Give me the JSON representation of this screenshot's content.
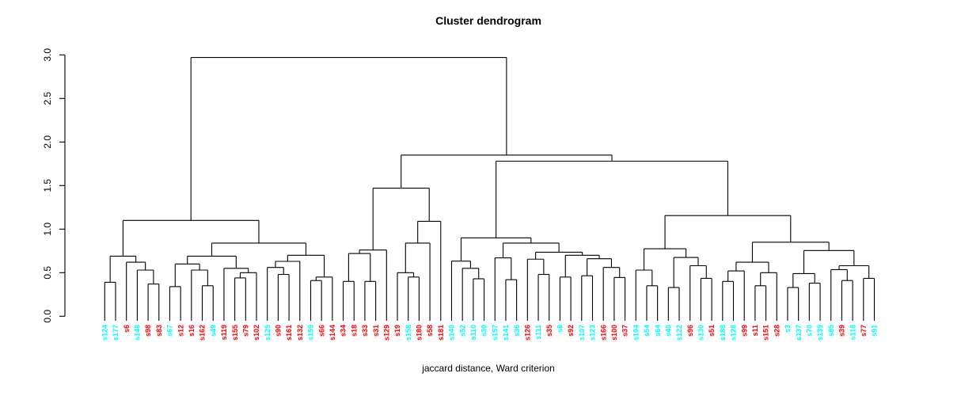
{
  "chart_data": {
    "type": "dendrogram",
    "title": "Cluster dendrogram",
    "xlabel": "jaccard distance, Ward criterion",
    "ylabel": "",
    "ylim": [
      0,
      3
    ],
    "y_ticks": [
      0.0,
      0.5,
      1.0,
      1.5,
      2.0,
      2.5,
      3.0
    ],
    "grid": false,
    "legend": "none",
    "line_color": "#000000",
    "leaf_colors": {
      "red": "#FF0000",
      "cyan": "#00FFFF"
    },
    "leaves": [
      {
        "label": "s124",
        "color": "cyan"
      },
      {
        "label": "s177",
        "color": "cyan"
      },
      {
        "label": "s6",
        "color": "red"
      },
      {
        "label": "s148",
        "color": "cyan"
      },
      {
        "label": "s98",
        "color": "red"
      },
      {
        "label": "s83",
        "color": "red"
      },
      {
        "label": "s67",
        "color": "cyan"
      },
      {
        "label": "s12",
        "color": "red"
      },
      {
        "label": "s16",
        "color": "red"
      },
      {
        "label": "s162",
        "color": "red"
      },
      {
        "label": "s49",
        "color": "cyan"
      },
      {
        "label": "s119",
        "color": "red"
      },
      {
        "label": "s155",
        "color": "red"
      },
      {
        "label": "s79",
        "color": "red"
      },
      {
        "label": "s102",
        "color": "red"
      },
      {
        "label": "s125",
        "color": "cyan"
      },
      {
        "label": "s90",
        "color": "red"
      },
      {
        "label": "s161",
        "color": "red"
      },
      {
        "label": "s132",
        "color": "red"
      },
      {
        "label": "s159",
        "color": "cyan"
      },
      {
        "label": "s66",
        "color": "red"
      },
      {
        "label": "s144",
        "color": "red"
      },
      {
        "label": "s34",
        "color": "red"
      },
      {
        "label": "s18",
        "color": "red"
      },
      {
        "label": "s33",
        "color": "red"
      },
      {
        "label": "s31",
        "color": "red"
      },
      {
        "label": "s129",
        "color": "red"
      },
      {
        "label": "s19",
        "color": "red"
      },
      {
        "label": "s158",
        "color": "cyan"
      },
      {
        "label": "s180",
        "color": "red"
      },
      {
        "label": "s58",
        "color": "red"
      },
      {
        "label": "s181",
        "color": "red"
      },
      {
        "label": "s140",
        "color": "cyan"
      },
      {
        "label": "s52",
        "color": "cyan"
      },
      {
        "label": "s110",
        "color": "cyan"
      },
      {
        "label": "s30",
        "color": "cyan"
      },
      {
        "label": "s157",
        "color": "cyan"
      },
      {
        "label": "s141",
        "color": "cyan"
      },
      {
        "label": "s36",
        "color": "cyan"
      },
      {
        "label": "s126",
        "color": "red"
      },
      {
        "label": "s111",
        "color": "cyan"
      },
      {
        "label": "s35",
        "color": "red"
      },
      {
        "label": "s9",
        "color": "cyan"
      },
      {
        "label": "s92",
        "color": "red"
      },
      {
        "label": "s107",
        "color": "cyan"
      },
      {
        "label": "s123",
        "color": "cyan"
      },
      {
        "label": "s166",
        "color": "red"
      },
      {
        "label": "s100",
        "color": "red"
      },
      {
        "label": "s37",
        "color": "red"
      },
      {
        "label": "s104",
        "color": "cyan"
      },
      {
        "label": "s54",
        "color": "cyan"
      },
      {
        "label": "s64",
        "color": "cyan"
      },
      {
        "label": "s40",
        "color": "cyan"
      },
      {
        "label": "s122",
        "color": "cyan"
      },
      {
        "label": "s96",
        "color": "red"
      },
      {
        "label": "s130",
        "color": "cyan"
      },
      {
        "label": "s51",
        "color": "red"
      },
      {
        "label": "s188",
        "color": "cyan"
      },
      {
        "label": "s128",
        "color": "cyan"
      },
      {
        "label": "s99",
        "color": "red"
      },
      {
        "label": "s11",
        "color": "red"
      },
      {
        "label": "s151",
        "color": "red"
      },
      {
        "label": "s28",
        "color": "red"
      },
      {
        "label": "s3",
        "color": "cyan"
      },
      {
        "label": "s137",
        "color": "cyan"
      },
      {
        "label": "s70",
        "color": "cyan"
      },
      {
        "label": "s139",
        "color": "cyan"
      },
      {
        "label": "s85",
        "color": "cyan"
      },
      {
        "label": "s39",
        "color": "red"
      },
      {
        "label": "s118",
        "color": "cyan"
      },
      {
        "label": "s77",
        "color": "red"
      },
      {
        "label": "s91",
        "color": "cyan"
      }
    ],
    "tree": {
      "h": 2.97,
      "c": [
        {
          "h": 1.1,
          "c": [
            {
              "h": 0.69,
              "c": [
                {
                  "h": 0.39,
                  "c": [
                    "s124",
                    "s177"
                  ]
                },
                {
                  "h": 0.62,
                  "c": [
                    "s6",
                    {
                      "h": 0.53,
                      "c": [
                        "s148",
                        {
                          "h": 0.37,
                          "c": [
                            "s98",
                            "s83"
                          ]
                        }
                      ]
                    }
                  ]
                }
              ]
            },
            {
              "h": 0.84,
              "c": [
                {
                  "h": 0.69,
                  "c": [
                    {
                      "h": 0.6,
                      "c": [
                        {
                          "h": 0.34,
                          "c": [
                            "s67",
                            "s12"
                          ]
                        },
                        {
                          "h": 0.53,
                          "c": [
                            "s16",
                            {
                              "h": 0.35,
                              "c": [
                                "s162",
                                "s49"
                              ]
                            }
                          ]
                        }
                      ]
                    },
                    {
                      "h": 0.55,
                      "c": [
                        "s119",
                        {
                          "h": 0.5,
                          "c": [
                            {
                              "h": 0.44,
                              "c": [
                                "s155",
                                "s79"
                              ]
                            },
                            "s102"
                          ]
                        }
                      ]
                    }
                  ]
                },
                {
                  "h": 0.7,
                  "c": [
                    {
                      "h": 0.63,
                      "c": [
                        {
                          "h": 0.56,
                          "c": [
                            "s125",
                            {
                              "h": 0.48,
                              "c": [
                                "s90",
                                "s161"
                              ]
                            }
                          ]
                        },
                        "s132"
                      ]
                    },
                    {
                      "h": 0.45,
                      "c": [
                        {
                          "h": 0.41,
                          "c": [
                            "s159",
                            "s66"
                          ]
                        },
                        "s144"
                      ]
                    }
                  ]
                }
              ]
            }
          ]
        },
        {
          "h": 1.85,
          "c": [
            {
              "h": 1.47,
              "c": [
                {
                  "h": 0.76,
                  "c": [
                    {
                      "h": 0.72,
                      "c": [
                        {
                          "h": 0.4,
                          "c": [
                            "s34",
                            "s18"
                          ]
                        },
                        {
                          "h": 0.4,
                          "c": [
                            "s33",
                            "s31"
                          ]
                        }
                      ]
                    },
                    "s129"
                  ]
                },
                {
                  "h": 1.09,
                  "c": [
                    {
                      "h": 0.84,
                      "c": [
                        {
                          "h": 0.5,
                          "c": [
                            "s19",
                            {
                              "h": 0.45,
                              "c": [
                                "s158",
                                "s180"
                              ]
                            }
                          ]
                        },
                        "s58"
                      ]
                    },
                    "s181"
                  ]
                }
              ]
            },
            {
              "h": 1.78,
              "c": [
                {
                  "h": 0.9,
                  "c": [
                    {
                      "h": 0.633,
                      "c": [
                        "s140",
                        {
                          "h": 0.55,
                          "c": [
                            "s52",
                            {
                              "h": 0.43,
                              "c": [
                                "s110",
                                "s30"
                              ]
                            }
                          ]
                        }
                      ]
                    },
                    {
                      "h": 0.84,
                      "c": [
                        {
                          "h": 0.67,
                          "c": [
                            "s157",
                            {
                              "h": 0.42,
                              "c": [
                                "s141",
                                "s36"
                              ]
                            }
                          ]
                        },
                        {
                          "h": 0.735,
                          "c": [
                            {
                              "h": 0.655,
                              "c": [
                                "s126",
                                {
                                  "h": 0.48,
                                  "c": [
                                    "s111",
                                    "s35"
                                  ]
                                }
                              ]
                            },
                            {
                              "h": 0.7,
                              "c": [
                                {
                                  "h": 0.45,
                                  "c": [
                                    "s9",
                                    "s92"
                                  ]
                                },
                                {
                                  "h": 0.66,
                                  "c": [
                                    {
                                      "h": 0.465,
                                      "c": [
                                        "s107",
                                        "s123"
                                      ]
                                    },
                                    {
                                      "h": 0.56,
                                      "c": [
                                        "s166",
                                        {
                                          "h": 0.445,
                                          "c": [
                                            "s100",
                                            "s37"
                                          ]
                                        }
                                      ]
                                    }
                                  ]
                                }
                              ]
                            }
                          ]
                        }
                      ]
                    }
                  ]
                },
                {
                  "h": 1.156,
                  "c": [
                    {
                      "h": 0.775,
                      "c": [
                        {
                          "h": 0.53,
                          "c": [
                            "s104",
                            {
                              "h": 0.35,
                              "c": [
                                "s54",
                                "s64"
                              ]
                            }
                          ]
                        },
                        {
                          "h": 0.675,
                          "c": [
                            {
                              "h": 0.33,
                              "c": [
                                "s40",
                                "s122"
                              ]
                            },
                            {
                              "h": 0.58,
                              "c": [
                                "s96",
                                {
                                  "h": 0.435,
                                  "c": [
                                    "s130",
                                    "s51"
                                  ]
                                }
                              ]
                            }
                          ]
                        }
                      ]
                    },
                    {
                      "h": 0.85,
                      "c": [
                        {
                          "h": 0.62,
                          "c": [
                            {
                              "h": 0.52,
                              "c": [
                                {
                                  "h": 0.4,
                                  "c": [
                                    "s188",
                                    "s128"
                                  ]
                                },
                                "s99"
                              ]
                            },
                            {
                              "h": 0.5,
                              "c": [
                                {
                                  "h": 0.35,
                                  "c": [
                                    "s11",
                                    "s151"
                                  ]
                                },
                                "s28"
                              ]
                            }
                          ]
                        },
                        {
                          "h": 0.754,
                          "c": [
                            {
                              "h": 0.49,
                              "c": [
                                {
                                  "h": 0.33,
                                  "c": [
                                    "s3",
                                    "s137"
                                  ]
                                },
                                {
                                  "h": 0.38,
                                  "c": [
                                    "s70",
                                    "s139"
                                  ]
                                }
                              ]
                            },
                            {
                              "h": 0.58,
                              "c": [
                                {
                                  "h": 0.535,
                                  "c": [
                                    "s85",
                                    {
                                      "h": 0.41,
                                      "c": [
                                        "s39",
                                        "s118"
                                      ]
                                    }
                                  ]
                                },
                                {
                                  "h": 0.435,
                                  "c": [
                                    "s77",
                                    "s91"
                                  ]
                                }
                              ]
                            }
                          ]
                        }
                      ]
                    }
                  ]
                }
              ]
            }
          ]
        }
      ]
    }
  }
}
